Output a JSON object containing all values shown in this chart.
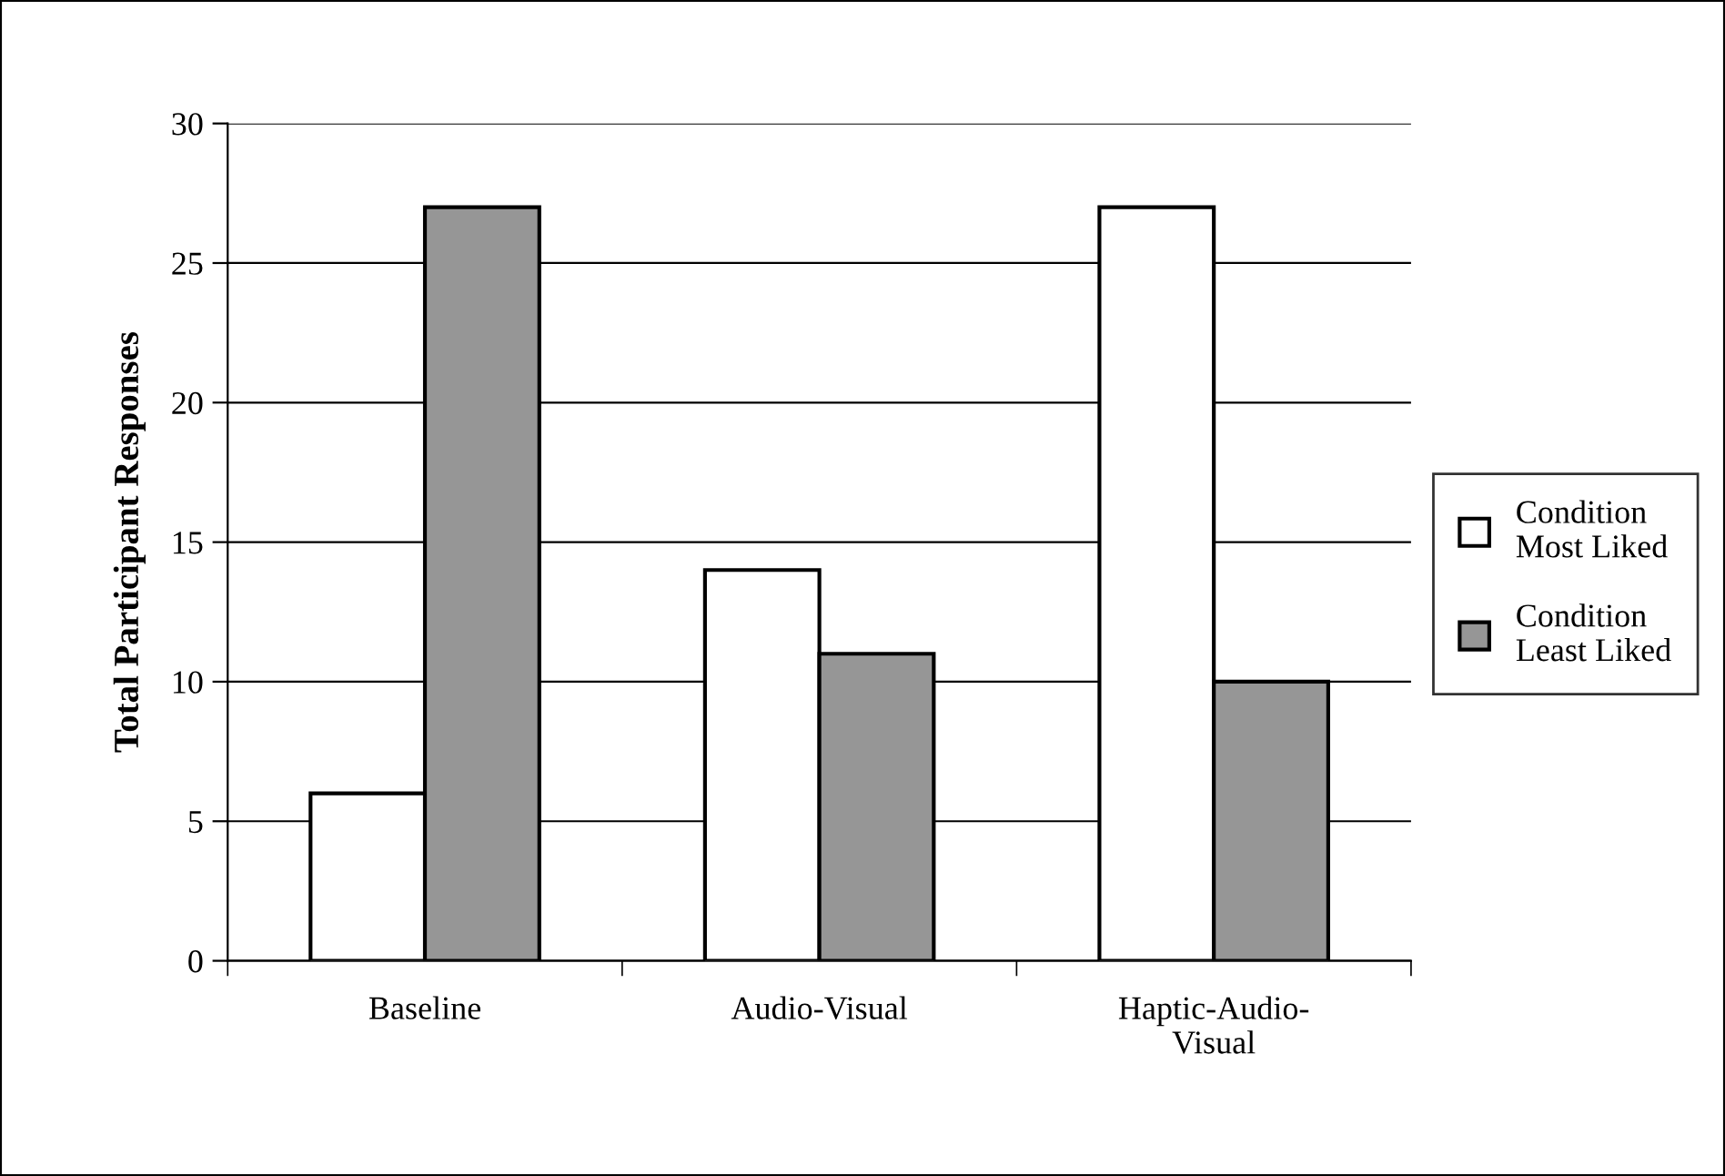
{
  "chart_data": {
    "type": "bar",
    "ylabel": "Total Participant Responses",
    "categories": [
      "Baseline",
      "Audio-Visual",
      "Haptic-Audio-\nVisual"
    ],
    "series": [
      {
        "name": "Condition\nMost Liked",
        "color": "#ffffff",
        "values": [
          6,
          14,
          27
        ]
      },
      {
        "name": "Condition\nLeast Liked",
        "color": "#969696",
        "values": [
          27,
          11,
          10
        ]
      }
    ],
    "ylim": [
      0,
      30
    ],
    "yticks": [
      0,
      5,
      10,
      15,
      20,
      25,
      30
    ],
    "grid": "y",
    "legend": "right"
  }
}
